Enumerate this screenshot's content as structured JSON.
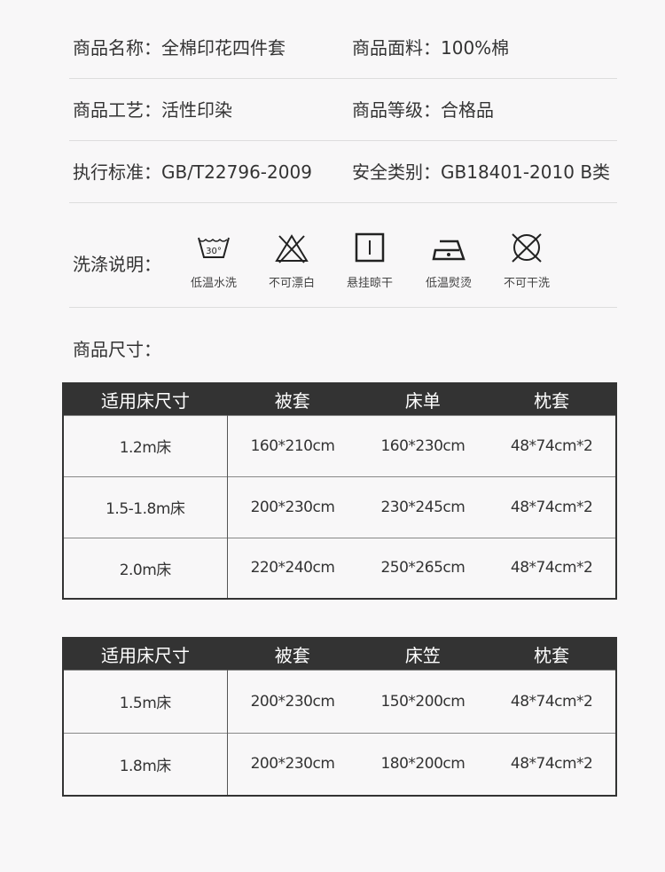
{
  "info": [
    {
      "l1": "商品名称：",
      "v1": "全棉印花四件套",
      "l2": "商品面料：",
      "v2": "100%棉"
    },
    {
      "l1": "商品工艺：",
      "v1": "活性印染",
      "l2": "商品等级：",
      "v2": "合格品"
    },
    {
      "l1": "执行标准：",
      "v1": "GB/T22796-2009",
      "l2": "安全类别：",
      "v2": "GB18401-2010 B类"
    }
  ],
  "wash": {
    "label": "洗涤说明：",
    "items": [
      {
        "icon": "wash-30-icon",
        "text": "低温水洗",
        "temp": "30°"
      },
      {
        "icon": "no-bleach-icon",
        "text": "不可漂白"
      },
      {
        "icon": "hang-dry-icon",
        "text": "悬挂晾干"
      },
      {
        "icon": "low-iron-icon",
        "text": "低温熨烫"
      },
      {
        "icon": "no-dry-clean-icon",
        "text": "不可干洗"
      }
    ]
  },
  "size_title": "商品尺寸：",
  "table1": {
    "headers": [
      "适用床尺寸",
      "被套",
      "床单",
      "枕套"
    ],
    "rows": [
      [
        "1.2m床",
        "160*210cm",
        "160*230cm",
        "48*74cm*2"
      ],
      [
        "1.5-1.8m床",
        "200*230cm",
        "230*245cm",
        "48*74cm*2"
      ],
      [
        "2.0m床",
        "220*240cm",
        "250*265cm",
        "48*74cm*2"
      ]
    ]
  },
  "table2": {
    "headers": [
      "适用床尺寸",
      "被套",
      "床笠",
      "枕套"
    ],
    "rows": [
      [
        "1.5m床",
        "200*230cm",
        "150*200cm",
        "48*74cm*2"
      ],
      [
        "1.8m床",
        "200*230cm",
        "180*200cm",
        "48*74cm*2"
      ]
    ]
  }
}
